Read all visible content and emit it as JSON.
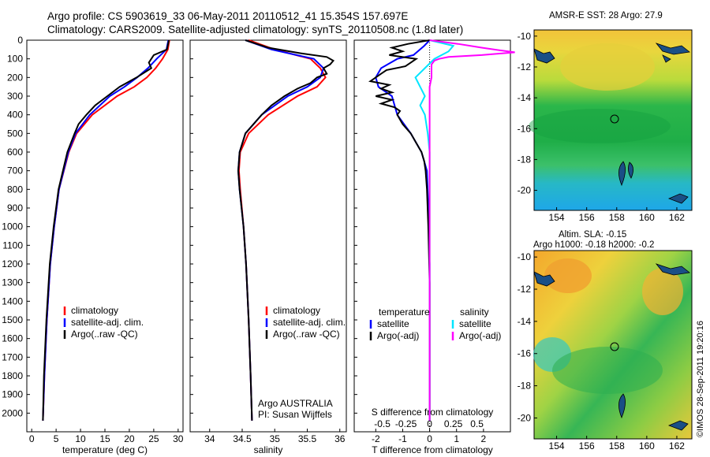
{
  "header": {
    "line1": "Argo profile: CS 5903619_33 06-May-2011 20110512_41 15.354S 157.697E",
    "line2": "Climatology: CARS2009. Satellite-adjusted climatology: synTS_20110508.nc (1.8d later)"
  },
  "maps": {
    "top_title": "AMSR-E SST: 28 Argo: 27.9",
    "bottom_title1": "Altim. SLA: -0.15",
    "bottom_title2": "Argo h1000: -0.18 h2000: -0.2",
    "lon_ticks": [
      "154",
      "156",
      "158",
      "160",
      "162"
    ],
    "lat_ticks": [
      "-10",
      "-12",
      "-14",
      "-16",
      "-18",
      "-20"
    ],
    "float_marker": {
      "lon": 157.7,
      "lat": -15.35
    }
  },
  "credit": "©IMOS 28-Sep-2011 19:20:16",
  "colors": {
    "climatology": "#ff0000",
    "satellite": "#0000ff",
    "argo": "#000000",
    "argo_salinity": "#ff00ff",
    "satellite_salinity": "#00e5ff"
  },
  "chart_data": [
    {
      "type": "line",
      "xlabel": "temperature (deg C)",
      "ylabel": "",
      "xlim": [
        -1,
        31
      ],
      "ylim": [
        2100,
        0
      ],
      "xticks": [
        "0",
        "5",
        "10",
        "15",
        "20",
        "25",
        "30"
      ],
      "yticks": [
        "0",
        "100",
        "200",
        "300",
        "400",
        "500",
        "600",
        "700",
        "800",
        "900",
        "1000",
        "1100",
        "1200",
        "1300",
        "1400",
        "1500",
        "1600",
        "1700",
        "1800",
        "1900",
        "2000"
      ],
      "legend": [
        "climatology",
        "satellite-adj. clim.",
        "Argo(..raw -QC)"
      ],
      "series": [
        {
          "name": "climatology",
          "depth": [
            0,
            50,
            100,
            150,
            200,
            250,
            300,
            400,
            500,
            600,
            800,
            1000,
            1200,
            1500,
            1800,
            2040
          ],
          "values": [
            28.2,
            27.9,
            26.8,
            25.4,
            23.6,
            21.0,
            17.5,
            12.4,
            9.2,
            7.6,
            5.6,
            4.6,
            3.8,
            3.1,
            2.6,
            2.3
          ]
        },
        {
          "name": "satellite-adj. clim.",
          "depth": [
            0,
            50,
            100,
            150,
            200,
            250,
            300,
            400,
            500,
            600,
            800,
            1000,
            1200,
            1500,
            1800,
            2040
          ],
          "values": [
            28.0,
            27.6,
            25.6,
            23.8,
            21.6,
            19.0,
            16.0,
            11.9,
            9.0,
            7.5,
            5.6,
            4.6,
            3.8,
            3.1,
            2.6,
            2.3
          ]
        },
        {
          "name": "Argo(..raw -QC)",
          "depth": [
            0,
            50,
            80,
            120,
            150,
            200,
            250,
            300,
            350,
            400,
            450,
            500,
            600,
            800,
            1000,
            1200,
            1500,
            1800,
            2040
          ],
          "values": [
            28.1,
            27.7,
            25.0,
            24.0,
            24.5,
            21.5,
            18.0,
            15.5,
            13.0,
            11.2,
            9.6,
            8.8,
            7.3,
            5.5,
            4.5,
            3.7,
            3.0,
            2.5,
            2.3
          ]
        }
      ]
    },
    {
      "type": "line",
      "xlabel": "salinity",
      "ylabel": "",
      "xlim": [
        33.7,
        36.1
      ],
      "ylim": [
        2100,
        0
      ],
      "xticks": [
        "34",
        "34.5",
        "35",
        "35.5",
        "36"
      ],
      "legend": [
        "climatology",
        "satellite-adj. clim.",
        "Argo(..raw -QC)"
      ],
      "annotation": [
        "Argo AUSTRALIA",
        "PI: Susan Wijffels"
      ],
      "series": [
        {
          "name": "climatology",
          "depth": [
            0,
            50,
            100,
            150,
            200,
            250,
            300,
            400,
            500,
            600,
            700,
            800,
            1000,
            1200,
            1500,
            1800,
            2040
          ],
          "values": [
            34.6,
            35.0,
            35.55,
            35.7,
            35.78,
            35.65,
            35.35,
            34.9,
            34.6,
            34.47,
            34.45,
            34.47,
            34.52,
            34.56,
            34.6,
            34.63,
            34.65
          ]
        },
        {
          "name": "satellite-adj. clim.",
          "depth": [
            0,
            50,
            100,
            150,
            200,
            250,
            300,
            400,
            500,
            600,
            700,
            800,
            1000,
            1200,
            1500,
            1800,
            2040
          ],
          "values": [
            34.55,
            34.95,
            35.6,
            35.75,
            35.7,
            35.5,
            35.2,
            34.8,
            34.55,
            34.46,
            34.44,
            34.46,
            34.52,
            34.56,
            34.6,
            34.63,
            34.65
          ]
        },
        {
          "name": "Argo(..raw -QC)",
          "depth": [
            0,
            40,
            70,
            90,
            110,
            130,
            150,
            180,
            200,
            230,
            260,
            300,
            350,
            400,
            500,
            600,
            700,
            800,
            1000,
            1200,
            1500,
            1800,
            2040
          ],
          "values": [
            34.55,
            34.9,
            35.4,
            35.8,
            35.9,
            35.85,
            35.75,
            35.8,
            35.65,
            35.55,
            35.35,
            35.15,
            34.95,
            34.8,
            34.55,
            34.46,
            34.44,
            34.46,
            34.52,
            34.56,
            34.6,
            34.63,
            34.65
          ]
        }
      ]
    },
    {
      "type": "line",
      "xlabel": "T difference from climatology",
      "x2label": "S difference from climatology",
      "ylabel": "",
      "xlim": [
        -2.8,
        3.0
      ],
      "ylim": [
        2100,
        0
      ],
      "xticks": [
        "-2",
        "-1",
        "0",
        "1",
        "2"
      ],
      "x2ticks": [
        "-0.5",
        "-0.25",
        "0",
        "0.25",
        "0.5"
      ],
      "legend_temperature": [
        "temperature",
        "satellite",
        "Argo(-adj)"
      ],
      "legend_salinity": [
        "salinity",
        "satellite",
        "Argo(-adj)"
      ],
      "series": [
        {
          "name": "temperature satellite",
          "depth": [
            0,
            30,
            80,
            100,
            150,
            200,
            250,
            300,
            400,
            500,
            600,
            700,
            900,
            1200,
            1600,
            2040
          ],
          "values": [
            0,
            -0.2,
            -0.6,
            -1.2,
            -1.8,
            -2.0,
            -1.9,
            -1.4,
            -1.2,
            -0.7,
            -0.3,
            -0.1,
            -0.05,
            0,
            0,
            0
          ]
        },
        {
          "name": "temperature Argo(-adj)",
          "depth": [
            0,
            20,
            40,
            60,
            80,
            100,
            120,
            140,
            160,
            180,
            200,
            220,
            240,
            260,
            280,
            300,
            320,
            340,
            360,
            380,
            400,
            450,
            500,
            550,
            600,
            650,
            700,
            800,
            1000,
            1300,
            1600,
            2040
          ],
          "values": [
            0,
            -0.8,
            -1.4,
            -1.0,
            -1.5,
            -0.5,
            -0.7,
            -0.9,
            -1.6,
            -1.8,
            -2.0,
            -2.2,
            -1.5,
            -1.8,
            -1.4,
            -2.0,
            -1.4,
            -1.8,
            -1.3,
            -1.1,
            -1.2,
            -1.0,
            -0.7,
            -0.5,
            -0.3,
            -0.2,
            -0.15,
            -0.1,
            -0.05,
            0,
            0,
            0
          ]
        },
        {
          "name": "salinity satellite",
          "depth": [
            0,
            30,
            60,
            100,
            150,
            200,
            250,
            300,
            350,
            400,
            500,
            600,
            700,
            800,
            1000,
            1500,
            2040
          ],
          "values": [
            0,
            0.25,
            0.2,
            0.05,
            -0.05,
            -0.15,
            -0.1,
            -0.05,
            -0.1,
            -0.05,
            -0.02,
            0,
            0,
            0,
            0,
            0,
            0
          ]
        },
        {
          "name": "salinity Argo(-adj)",
          "depth": [
            0,
            20,
            40,
            55,
            65,
            80,
            90,
            100,
            110,
            130,
            160,
            200,
            250,
            300,
            400,
            600,
            1000,
            2040
          ],
          "values": [
            0,
            0.3,
            0.55,
            0.75,
            0.9,
            0.55,
            0.2,
            0.1,
            0.05,
            0.02,
            0.02,
            0.02,
            0,
            0,
            0,
            0,
            0,
            0
          ]
        }
      ]
    }
  ]
}
